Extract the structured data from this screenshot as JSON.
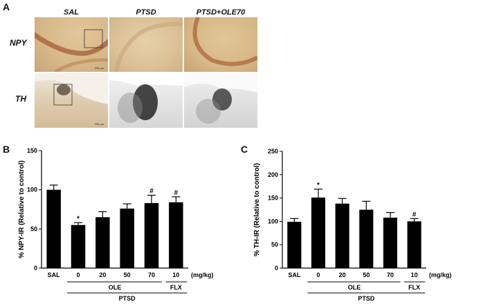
{
  "panel_a": {
    "letter": "A",
    "columns": [
      "SAL",
      "PTSD",
      "PTSD+OLE70"
    ],
    "rows": [
      "NPY",
      "TH"
    ],
    "scale_bar": "200 μm"
  },
  "chart_data": [
    {
      "panel": "B",
      "type": "bar",
      "categories": [
        "SAL",
        "0",
        "20",
        "50",
        "70",
        "10"
      ],
      "values": [
        100,
        55,
        65,
        76,
        83,
        84
      ],
      "errors": [
        6,
        3,
        7,
        6,
        10,
        7
      ],
      "significance": [
        "",
        "*",
        "",
        "",
        "#",
        "#"
      ],
      "ylabel": "% NPY-IR (Relative to control)",
      "ylim": [
        0,
        150
      ],
      "yticks": [
        0,
        50,
        100,
        150
      ],
      "unit_label": "(mg/kg)",
      "group_labels": {
        "ole": "OLE",
        "flx": "FLX",
        "ptsd": "PTSD"
      },
      "bar_color": "#000000"
    },
    {
      "panel": "C",
      "type": "bar",
      "categories": [
        "SAL",
        "0",
        "20",
        "50",
        "70",
        "10"
      ],
      "values": [
        99,
        151,
        138,
        125,
        108,
        100
      ],
      "errors": [
        7,
        18,
        11,
        18,
        11,
        6
      ],
      "significance": [
        "",
        "*",
        "",
        "",
        "",
        "#"
      ],
      "ylabel": "% TH-IR (Relative to control)",
      "ylim": [
        0,
        250
      ],
      "yticks": [
        0,
        50,
        100,
        150,
        200,
        250
      ],
      "unit_label": "(mg/kg)",
      "group_labels": {
        "ole": "OLE",
        "flx": "FLX",
        "ptsd": "PTSD"
      },
      "bar_color": "#000000"
    }
  ]
}
